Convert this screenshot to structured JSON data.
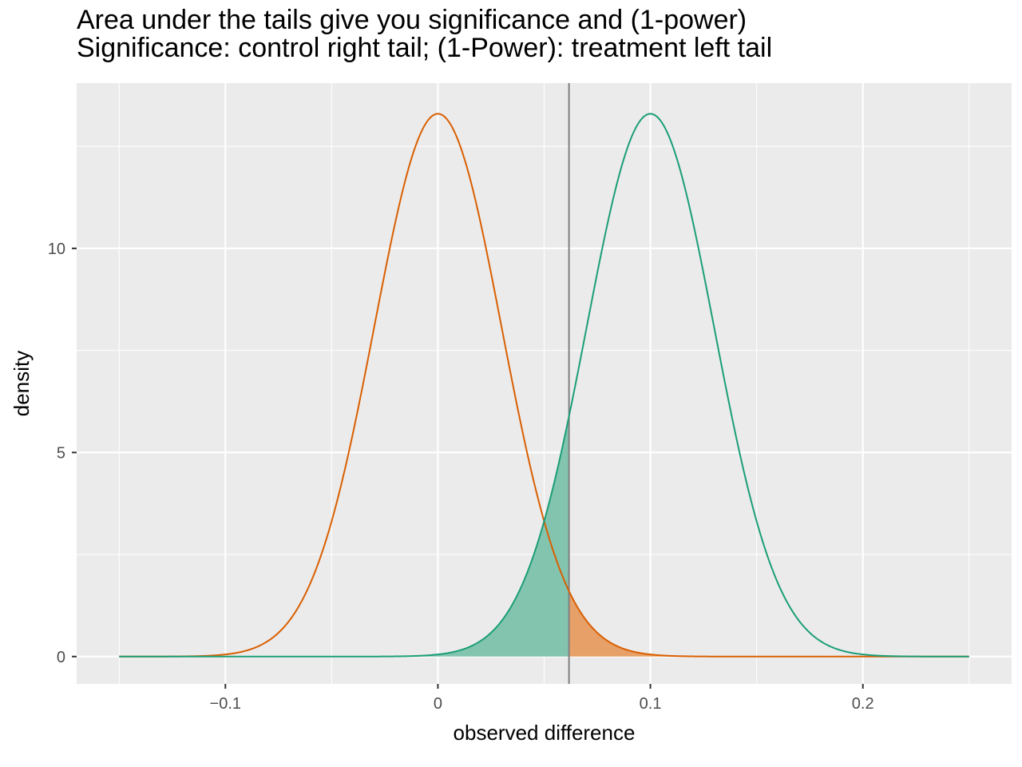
{
  "chart_data": {
    "type": "area",
    "title": "Area under the tails give you significance and (1-power)",
    "subtitle": "Significance: control right tail; (1-Power): treatment left tail",
    "xlabel": "observed difference",
    "ylabel": "density",
    "xlim": [
      -0.17,
      0.27
    ],
    "ylim": [
      -0.67,
      14.05
    ],
    "x_ticks": [
      -0.1,
      0,
      0.1,
      0.2
    ],
    "x_tick_labels": [
      "−0.1",
      "0",
      "0.1",
      "0.2"
    ],
    "y_ticks": [
      0,
      5,
      10
    ],
    "y_tick_labels": [
      "0",
      "5",
      "10"
    ],
    "threshold": 0.0617,
    "x_range": [
      -0.15,
      0.25
    ],
    "grid": true,
    "series": [
      {
        "color": "#D95F02",
        "fill_color": "#E6A068",
        "mean": 0,
        "sd": 0.03,
        "tail": "right"
      },
      {
        "color": "#1B9E77",
        "fill_color": "#82C4AE",
        "mean": 0.1,
        "sd": 0.03,
        "tail": "left"
      }
    ],
    "colors": {
      "panel": "#EBEBEB",
      "grid": "#FFFFFF",
      "threshold_line": "#808080"
    }
  }
}
